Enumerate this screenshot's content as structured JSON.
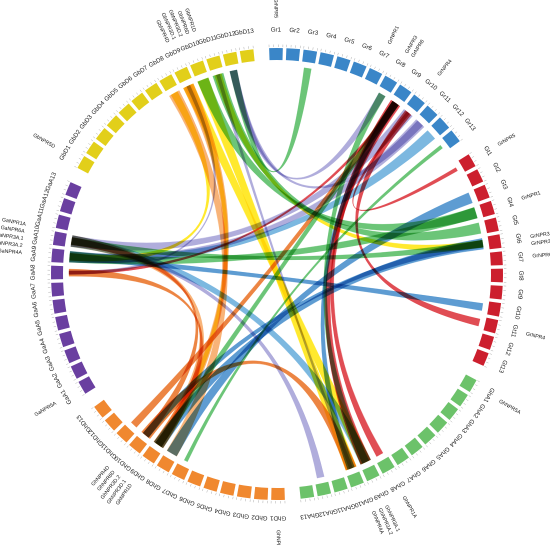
{
  "diagram": {
    "type": "circos-synteny",
    "groups": [
      {
        "name": "Gr",
        "color": "#3a86c8",
        "chromosomes": [
          "Gr1",
          "Gr2",
          "Gr3",
          "Gr4",
          "Gr5",
          "Gr6",
          "Gr7",
          "Gr8",
          "Gr9",
          "Gr10",
          "Gr11",
          "Gr12",
          "Gr13"
        ]
      },
      {
        "name": "Gt",
        "color": "#cc1f2e",
        "chromosomes": [
          "Gt1",
          "Gt2",
          "Gt3",
          "Gt4",
          "Gt5",
          "Gt6",
          "Gt7",
          "Gt8",
          "Gt9",
          "Gt10",
          "Gt11",
          "Gt12",
          "Gt13"
        ]
      },
      {
        "name": "GhA",
        "color": "#6cc26a",
        "chromosomes": [
          "GhA1",
          "GhA2",
          "GhA3",
          "GhA4",
          "GhA5",
          "GhA6",
          "GhA7",
          "GhA8",
          "GhA9",
          "GhA10",
          "GhA11",
          "GhA12",
          "GhA13"
        ]
      },
      {
        "name": "GhD",
        "color": "#f0882f",
        "chromosomes": [
          "GhD1",
          "GhD2",
          "GhD3",
          "GhD4",
          "GhD5",
          "GhD6",
          "GhD7",
          "GhD8",
          "GhD9",
          "GhD10",
          "GhD11",
          "GhD12",
          "GhD13"
        ]
      },
      {
        "name": "GaA",
        "color": "#6a3fa0",
        "chromosomes": [
          "GaA1",
          "GaA2",
          "GaA3",
          "GaA4",
          "GaA5",
          "GaA6",
          "GaA7",
          "GaA8",
          "GaA9",
          "GaA10",
          "GaA11",
          "GaA12",
          "GaA13"
        ]
      },
      {
        "name": "GbD",
        "color": "#e2cf1a",
        "chromosomes": [
          "GbD1",
          "GbD2",
          "GbD3",
          "GbD4",
          "GbD5",
          "GbD6",
          "GbD7",
          "GbD8",
          "GbD9",
          "GbD10",
          "GbD11",
          "GbD12",
          "GbD13"
        ]
      }
    ],
    "gene_labels": [
      {
        "text": "GrNPR5",
        "chr": "Gr1"
      },
      {
        "text": "GrNPR1",
        "chr": "Gr7"
      },
      {
        "text": "GrNPR3",
        "chr": "Gr8"
      },
      {
        "text": "GrNPR6",
        "chr": "Gr8"
      },
      {
        "text": "GrNPR4",
        "chr": "Gr10"
      },
      {
        "text": "GrNPR5",
        "chr": "Gt1"
      },
      {
        "text": "GrNPR1",
        "chr": "Gt4"
      },
      {
        "text": "GrNPR3.2",
        "chr": "Gt6"
      },
      {
        "text": "GrNPR3.1",
        "chr": "Gt6"
      },
      {
        "text": "GrNPR6",
        "chr": "Gt7"
      },
      {
        "text": "GrNPR4",
        "chr": "Gt11"
      },
      {
        "text": "GhNPR5A",
        "chr": "GhA1"
      },
      {
        "text": "GhNPR1A",
        "chr": "GhA8"
      },
      {
        "text": "GhNPR3A.1",
        "chr": "GhA9"
      },
      {
        "text": "GhNPR3A.2",
        "chr": "GhA9"
      },
      {
        "text": "GhNPR4A",
        "chr": "GhA9"
      },
      {
        "text": "GhNPR5D",
        "chr": "GhD1"
      },
      {
        "text": "GhNPR1D",
        "chr": "GhD9"
      },
      {
        "text": "GhNPR3D.1",
        "chr": "GhD9"
      },
      {
        "text": "GhNPR3D.2",
        "chr": "GhD9"
      },
      {
        "text": "GhNPR6D",
        "chr": "GhD9"
      },
      {
        "text": "GhNPR4D",
        "chr": "GhD9"
      },
      {
        "text": "GaNPR5A",
        "chr": "GaA1"
      },
      {
        "text": "GaNPR4A",
        "chr": "GaA9"
      },
      {
        "text": "GaNPR3A.2",
        "chr": "GaA9"
      },
      {
        "text": "GaNPR3A.1",
        "chr": "GaA9"
      },
      {
        "text": "GaNPR6A",
        "chr": "GaA9"
      },
      {
        "text": "GaNPR1A",
        "chr": "GaA9"
      },
      {
        "text": "GbNPR5D",
        "chr": "GbD1"
      },
      {
        "text": "GbNPR4D",
        "chr": "GbD9"
      },
      {
        "text": "GbNPR3D.1",
        "chr": "GbD9"
      },
      {
        "text": "GbNPR3D.2",
        "chr": "GbD9"
      },
      {
        "text": "GbNPR6D",
        "chr": "GbD9"
      },
      {
        "text": "GbNPR1D",
        "chr": "GbD9"
      }
    ],
    "links": [
      {
        "from": "GbD10",
        "to": "GhA10",
        "color": "#ffe400",
        "weight": 4
      },
      {
        "from": "GbD9",
        "to": "GhA9",
        "color": "#ffe400",
        "weight": 3
      },
      {
        "from": "GbD8",
        "to": "GaA9",
        "color": "#ffe400",
        "weight": 2
      },
      {
        "from": "GbD11",
        "to": "Gt6",
        "color": "#ffe400",
        "weight": 2
      },
      {
        "from": "GbD9",
        "to": "GhD9",
        "color": "#ffe400",
        "weight": 2
      },
      {
        "from": "GaA10",
        "to": "GhA9",
        "color": "#5fa8d9",
        "weight": 7
      },
      {
        "from": "GaA9",
        "to": "Gr12",
        "color": "#5fa8d9",
        "weight": 3
      },
      {
        "from": "GaA9",
        "to": "Gt10",
        "color": "#3a86c8",
        "weight": 2
      },
      {
        "from": "GhD9",
        "to": "Gt6",
        "color": "#3a86c8",
        "weight": 3
      },
      {
        "from": "GhD8",
        "to": "Gt3",
        "color": "#3a86c8",
        "weight": 3
      },
      {
        "from": "GhA10",
        "to": "Gr9",
        "color": "#3a86c8",
        "weight": 2
      },
      {
        "from": "GhD10",
        "to": "Gt6",
        "color": "#3a86c8",
        "weight": 2
      },
      {
        "from": "GbD10",
        "to": "Gt4",
        "color": "#4cb85a",
        "weight": 4
      },
      {
        "from": "GbD11",
        "to": "Gt5",
        "color": "#4cb85a",
        "weight": 3
      },
      {
        "from": "GaA9",
        "to": "Gt4",
        "color": "#4cb85a",
        "weight": 3
      },
      {
        "from": "GaA10",
        "to": "Gt6",
        "color": "#4cb85a",
        "weight": 2
      },
      {
        "from": "GhA9",
        "to": "Gr8",
        "color": "#4cb85a",
        "weight": 2
      },
      {
        "from": "GhD9",
        "to": "Gr9",
        "color": "#4cb85a",
        "weight": 2
      },
      {
        "from": "Gr3",
        "to": "GbD12",
        "color": "#4cb85a",
        "weight": 2
      },
      {
        "from": "GhD7",
        "to": "Gr13",
        "color": "#4cb85a",
        "weight": 1
      },
      {
        "from": "GhD9",
        "to": "GaA10",
        "color": "#f6a25a",
        "weight": 5
      },
      {
        "from": "GhD8",
        "to": "GbD8",
        "color": "#f6a25a",
        "weight": 4
      },
      {
        "from": "GhD9",
        "to": "GbD9",
        "color": "#f6a25a",
        "weight": 3
      },
      {
        "from": "GhD10",
        "to": "GhA10",
        "color": "#e86a1a",
        "weight": 3
      },
      {
        "from": "GhD10",
        "to": "GaA10",
        "color": "#e86a1a",
        "weight": 2
      },
      {
        "from": "GhD11",
        "to": "Gr9",
        "color": "#e86a1a",
        "weight": 2
      },
      {
        "from": "GhD9",
        "to": "GaA8",
        "color": "#e86a1a",
        "weight": 2
      },
      {
        "from": "Gr9",
        "to": "GhA9",
        "color": "#d9262e",
        "weight": 3
      },
      {
        "from": "Gr9",
        "to": "GhA8",
        "color": "#d9262e",
        "weight": 2
      },
      {
        "from": "Gr10",
        "to": "Gt11",
        "color": "#d9262e",
        "weight": 2
      },
      {
        "from": "Gr9",
        "to": "GaA8",
        "color": "#d9262e",
        "weight": 1
      },
      {
        "from": "Gr10",
        "to": "Gt1",
        "color": "#d9262e",
        "weight": 1
      },
      {
        "from": "GaA9",
        "to": "Gr11",
        "color": "#9f9bd4",
        "weight": 3
      },
      {
        "from": "GaA10",
        "to": "Gr10",
        "color": "#9f9bd4",
        "weight": 3
      },
      {
        "from": "GbD12",
        "to": "Gr11",
        "color": "#9f9bd4",
        "weight": 2
      },
      {
        "from": "GbD12",
        "to": "Gr8",
        "color": "#9f9bd4",
        "weight": 2
      },
      {
        "from": "GaA10",
        "to": "GhA12",
        "color": "#9f9bd4",
        "weight": 2
      },
      {
        "from": "GaA8",
        "to": "GbD9",
        "color": "#9f9bd4",
        "weight": 1
      },
      {
        "from": "GhA10",
        "to": "GbD11",
        "color": "#9f9bd4",
        "weight": 1
      }
    ]
  }
}
